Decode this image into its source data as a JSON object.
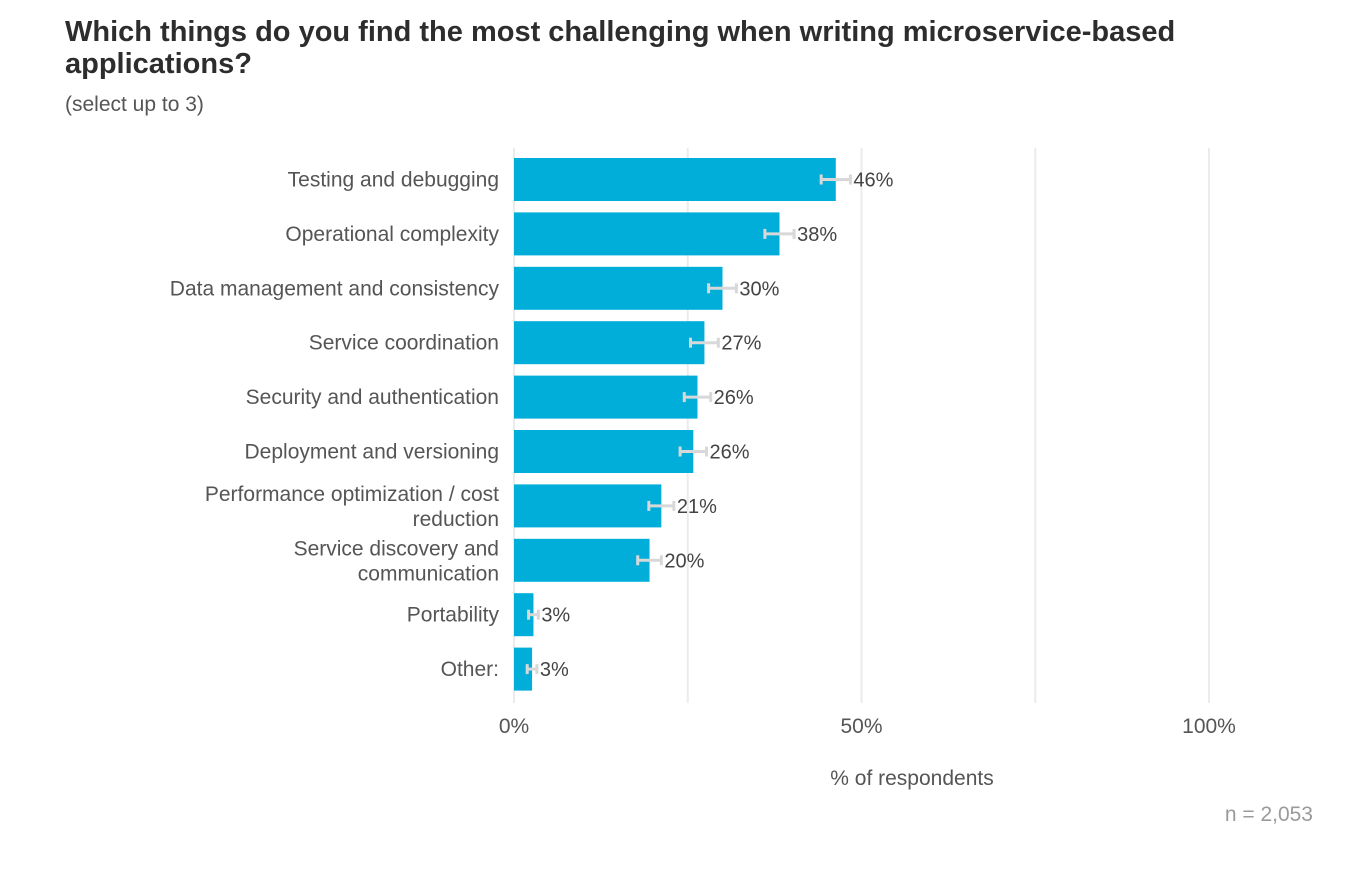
{
  "chart_data": {
    "type": "bar",
    "orientation": "horizontal",
    "title": "Which things do you find the most challenging when writing microservice-based applications?",
    "subtitle": "(select up to 3)",
    "categories": [
      "Testing and debugging",
      "Operational complexity",
      "Data management and consistency",
      "Service coordination",
      "Security and authentication",
      "Deployment and versioning",
      "Performance optimization / cost reduction",
      "Service discovery and communication",
      "Portability",
      "Other:"
    ],
    "values": [
      46.3,
      38.2,
      30,
      27.4,
      26.4,
      25.8,
      21.2,
      19.5,
      2.8,
      2.6
    ],
    "value_labels": [
      "46%",
      "38%",
      "30%",
      "27%",
      "26%",
      "26%",
      "21%",
      "20%",
      "3%",
      "3%"
    ],
    "error_low": [
      44.2,
      36.1,
      28,
      25.4,
      24.5,
      23.9,
      19.4,
      17.8,
      2.1,
      1.9
    ],
    "error_high": [
      48.4,
      40.3,
      32,
      29.4,
      28.3,
      27.7,
      23,
      21.2,
      3.5,
      3.3
    ],
    "xlabel": "% of respondents",
    "ylabel": "",
    "xlim": [
      0,
      100
    ],
    "xticks": [
      0,
      50,
      100
    ],
    "xtick_labels": [
      "0%",
      "50%",
      "100%"
    ],
    "minor_gridlines": [
      25,
      75
    ],
    "grid": true,
    "legend": "none",
    "bar_color": "#00aed9",
    "errorbar_color": "#d8d8d8",
    "gridline_color": "#ebebeb",
    "note": "n =  2,053"
  }
}
